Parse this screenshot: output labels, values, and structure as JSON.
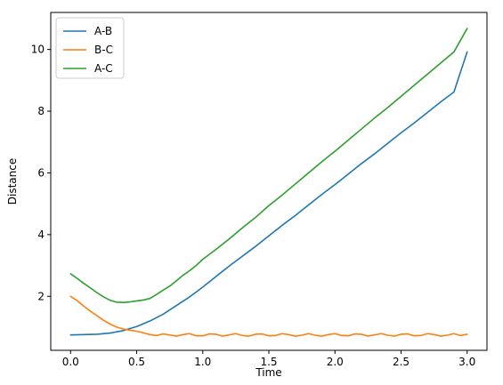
{
  "chart_data": {
    "type": "line",
    "title": "",
    "xlabel": "Time",
    "ylabel": "Distance",
    "xlim": [
      -0.15,
      3.15
    ],
    "ylim": [
      0.25,
      11.2
    ],
    "xticks": [
      0.0,
      0.5,
      1.0,
      1.5,
      2.0,
      2.5,
      3.0
    ],
    "xtick_labels": [
      "0.0",
      "0.5",
      "1.0",
      "1.5",
      "2.0",
      "2.5",
      "3.0"
    ],
    "yticks": [
      2,
      4,
      6,
      8,
      10
    ],
    "ytick_labels": [
      "2",
      "4",
      "6",
      "8",
      "10"
    ],
    "grid": false,
    "legend_position": "upper-left",
    "series": [
      {
        "name": "A-B",
        "color": "#1f77b4",
        "x": [
          0.0,
          0.1,
          0.2,
          0.3,
          0.4,
          0.5,
          0.6,
          0.7,
          0.8,
          0.9,
          1.0,
          1.1,
          1.2,
          1.3,
          1.4,
          1.5,
          1.6,
          1.7,
          1.8,
          1.9,
          2.0,
          2.1,
          2.2,
          2.3,
          2.4,
          2.5,
          2.6,
          2.7,
          2.8,
          2.9,
          3.0
        ],
        "values": [
          0.75,
          0.76,
          0.77,
          0.81,
          0.89,
          1.02,
          1.2,
          1.42,
          1.7,
          1.98,
          2.3,
          2.64,
          2.98,
          3.3,
          3.62,
          3.96,
          4.3,
          4.62,
          4.96,
          5.3,
          5.62,
          5.96,
          6.3,
          6.62,
          6.96,
          7.3,
          7.62,
          7.96,
          8.3,
          8.62,
          9.92
        ]
      },
      {
        "name": "B-C",
        "color": "#ff7f0e",
        "x": [
          0.0,
          0.05,
          0.1,
          0.15,
          0.2,
          0.25,
          0.3,
          0.35,
          0.4,
          0.45,
          0.5,
          0.55,
          0.6,
          0.65,
          0.7,
          0.75,
          0.8,
          0.85,
          0.9,
          0.95,
          1.0,
          1.05,
          1.1,
          1.15,
          1.2,
          1.25,
          1.3,
          1.35,
          1.4,
          1.45,
          1.5,
          1.55,
          1.6,
          1.65,
          1.7,
          1.75,
          1.8,
          1.85,
          1.9,
          1.95,
          2.0,
          2.05,
          2.1,
          2.15,
          2.2,
          2.25,
          2.3,
          2.35,
          2.4,
          2.45,
          2.5,
          2.55,
          2.6,
          2.65,
          2.7,
          2.75,
          2.8,
          2.85,
          2.9,
          2.95,
          3.0
        ],
        "values": [
          2.0,
          1.86,
          1.68,
          1.52,
          1.37,
          1.22,
          1.1,
          1.0,
          0.94,
          0.9,
          0.87,
          0.82,
          0.76,
          0.73,
          0.78,
          0.75,
          0.71,
          0.76,
          0.79,
          0.72,
          0.72,
          0.78,
          0.77,
          0.71,
          0.75,
          0.79,
          0.73,
          0.71,
          0.77,
          0.78,
          0.72,
          0.73,
          0.79,
          0.76,
          0.71,
          0.74,
          0.79,
          0.74,
          0.71,
          0.76,
          0.79,
          0.73,
          0.72,
          0.78,
          0.77,
          0.71,
          0.75,
          0.79,
          0.74,
          0.71,
          0.77,
          0.78,
          0.72,
          0.73,
          0.79,
          0.76,
          0.71,
          0.74,
          0.79,
          0.73,
          0.77
        ]
      },
      {
        "name": "A-C",
        "color": "#2ca02c",
        "x": [
          0.0,
          0.05,
          0.1,
          0.15,
          0.2,
          0.25,
          0.3,
          0.35,
          0.4,
          0.45,
          0.5,
          0.55,
          0.6,
          0.65,
          0.7,
          0.75,
          0.8,
          0.85,
          0.9,
          0.95,
          1.0,
          1.1,
          1.2,
          1.3,
          1.4,
          1.5,
          1.6,
          1.7,
          1.8,
          1.9,
          2.0,
          2.1,
          2.2,
          2.3,
          2.4,
          2.5,
          2.6,
          2.7,
          2.8,
          2.9,
          3.0
        ],
        "values": [
          2.73,
          2.58,
          2.42,
          2.27,
          2.12,
          1.98,
          1.87,
          1.81,
          1.8,
          1.82,
          1.85,
          1.88,
          1.93,
          2.06,
          2.2,
          2.33,
          2.5,
          2.68,
          2.83,
          3.0,
          3.2,
          3.52,
          3.86,
          4.22,
          4.56,
          4.94,
          5.28,
          5.64,
          6.0,
          6.36,
          6.7,
          7.06,
          7.42,
          7.78,
          8.12,
          8.48,
          8.84,
          9.2,
          9.56,
          9.92,
          10.68
        ]
      }
    ]
  }
}
